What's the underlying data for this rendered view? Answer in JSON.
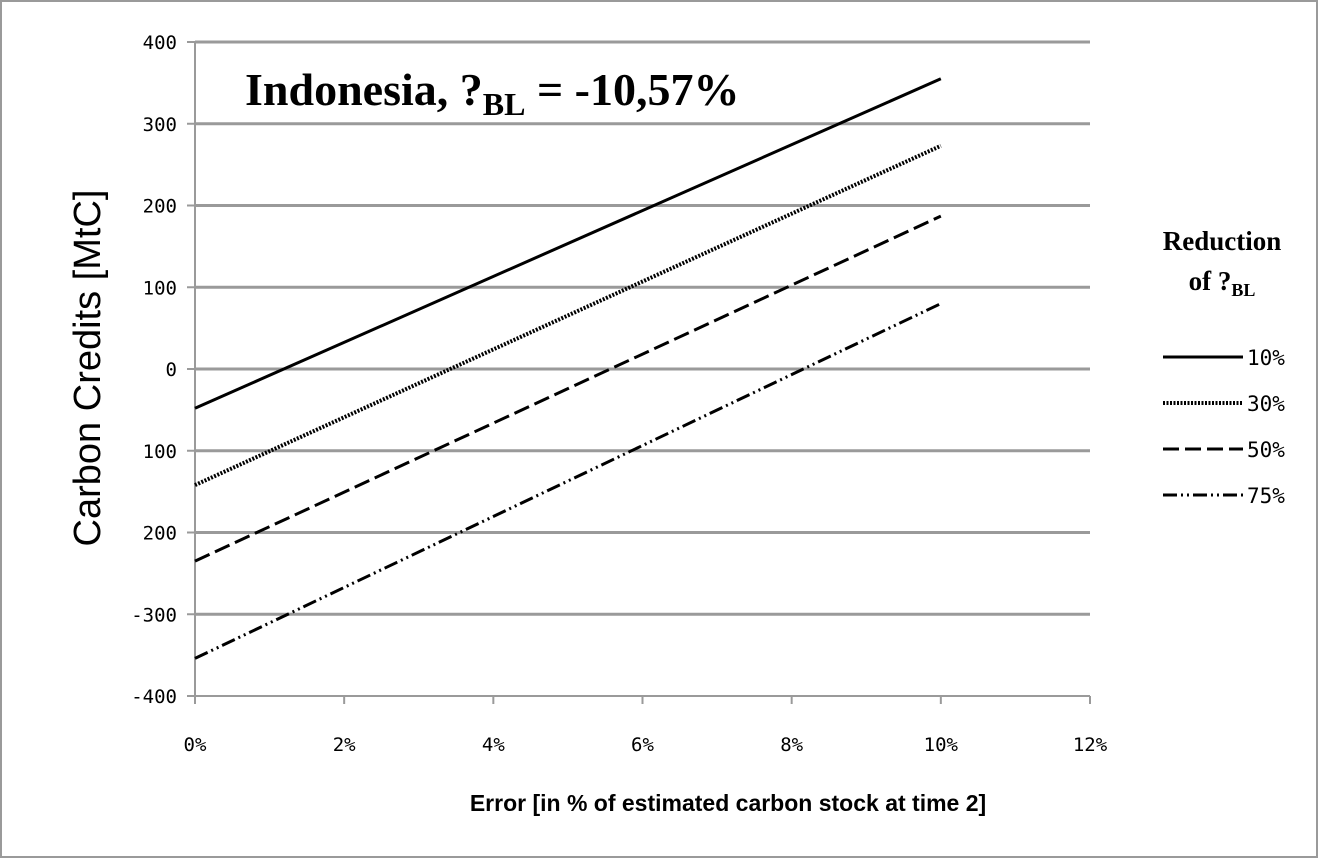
{
  "chart_data": {
    "type": "line",
    "title_main": "Indonesia, ?",
    "title_sub": "BL",
    "title_rest": " = -10,57%",
    "xlabel": "Error [in % of estimated carbon stock at time 2]",
    "ylabel": "Carbon Credits [MtC]",
    "x_ticks": [
      "0%",
      "2%",
      "4%",
      "6%",
      "8%",
      "10%",
      "12%"
    ],
    "y_ticks": [
      "400",
      "300",
      "200",
      "100",
      "0",
      "100",
      "200",
      "-300",
      "-400"
    ],
    "xlim": [
      0,
      12
    ],
    "ylim": [
      -400,
      400
    ],
    "grid": true,
    "legend_title_line1": "Reduction",
    "legend_title_line2_main": "of ?",
    "legend_title_line2_sub": "BL",
    "legend_position": "right",
    "series": [
      {
        "name": "10%",
        "dash": "solid",
        "x": [
          0,
          10
        ],
        "y": [
          -48,
          355
        ]
      },
      {
        "name": "30%",
        "dash": "dotted",
        "x": [
          0,
          10
        ],
        "y": [
          -142,
          273
        ]
      },
      {
        "name": "50%",
        "dash": "dashed",
        "x": [
          0,
          10
        ],
        "y": [
          -235,
          187
        ]
      },
      {
        "name": "75%",
        "dash": "dashdotdot",
        "x": [
          0,
          10
        ],
        "y": [
          -354,
          80
        ]
      }
    ],
    "line_color": "#000000",
    "grid_color": "#9a9a9a"
  }
}
